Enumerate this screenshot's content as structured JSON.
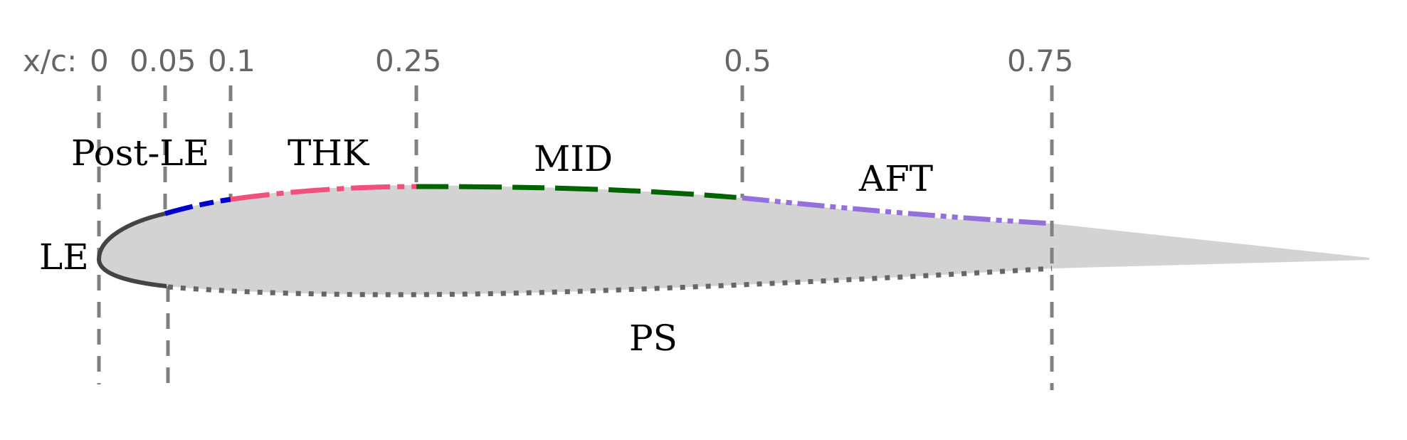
{
  "axis": {
    "prefix": "x/c:",
    "stations": [
      "0",
      "0.05",
      "0.1",
      "0.25",
      "0.5",
      "0.75"
    ]
  },
  "regions": {
    "le": "LE",
    "post_le": "Post-LE",
    "thk": "THK",
    "mid": "MID",
    "aft": "AFT",
    "ps": "PS"
  },
  "colors": {
    "airfoil_fill": "#d3d3d3",
    "le": "#444444",
    "post_le": "#0000cc",
    "thk": "#f0507a",
    "mid": "#006400",
    "aft": "#9370db",
    "ps": "#666666",
    "station_lines": "#808080"
  }
}
